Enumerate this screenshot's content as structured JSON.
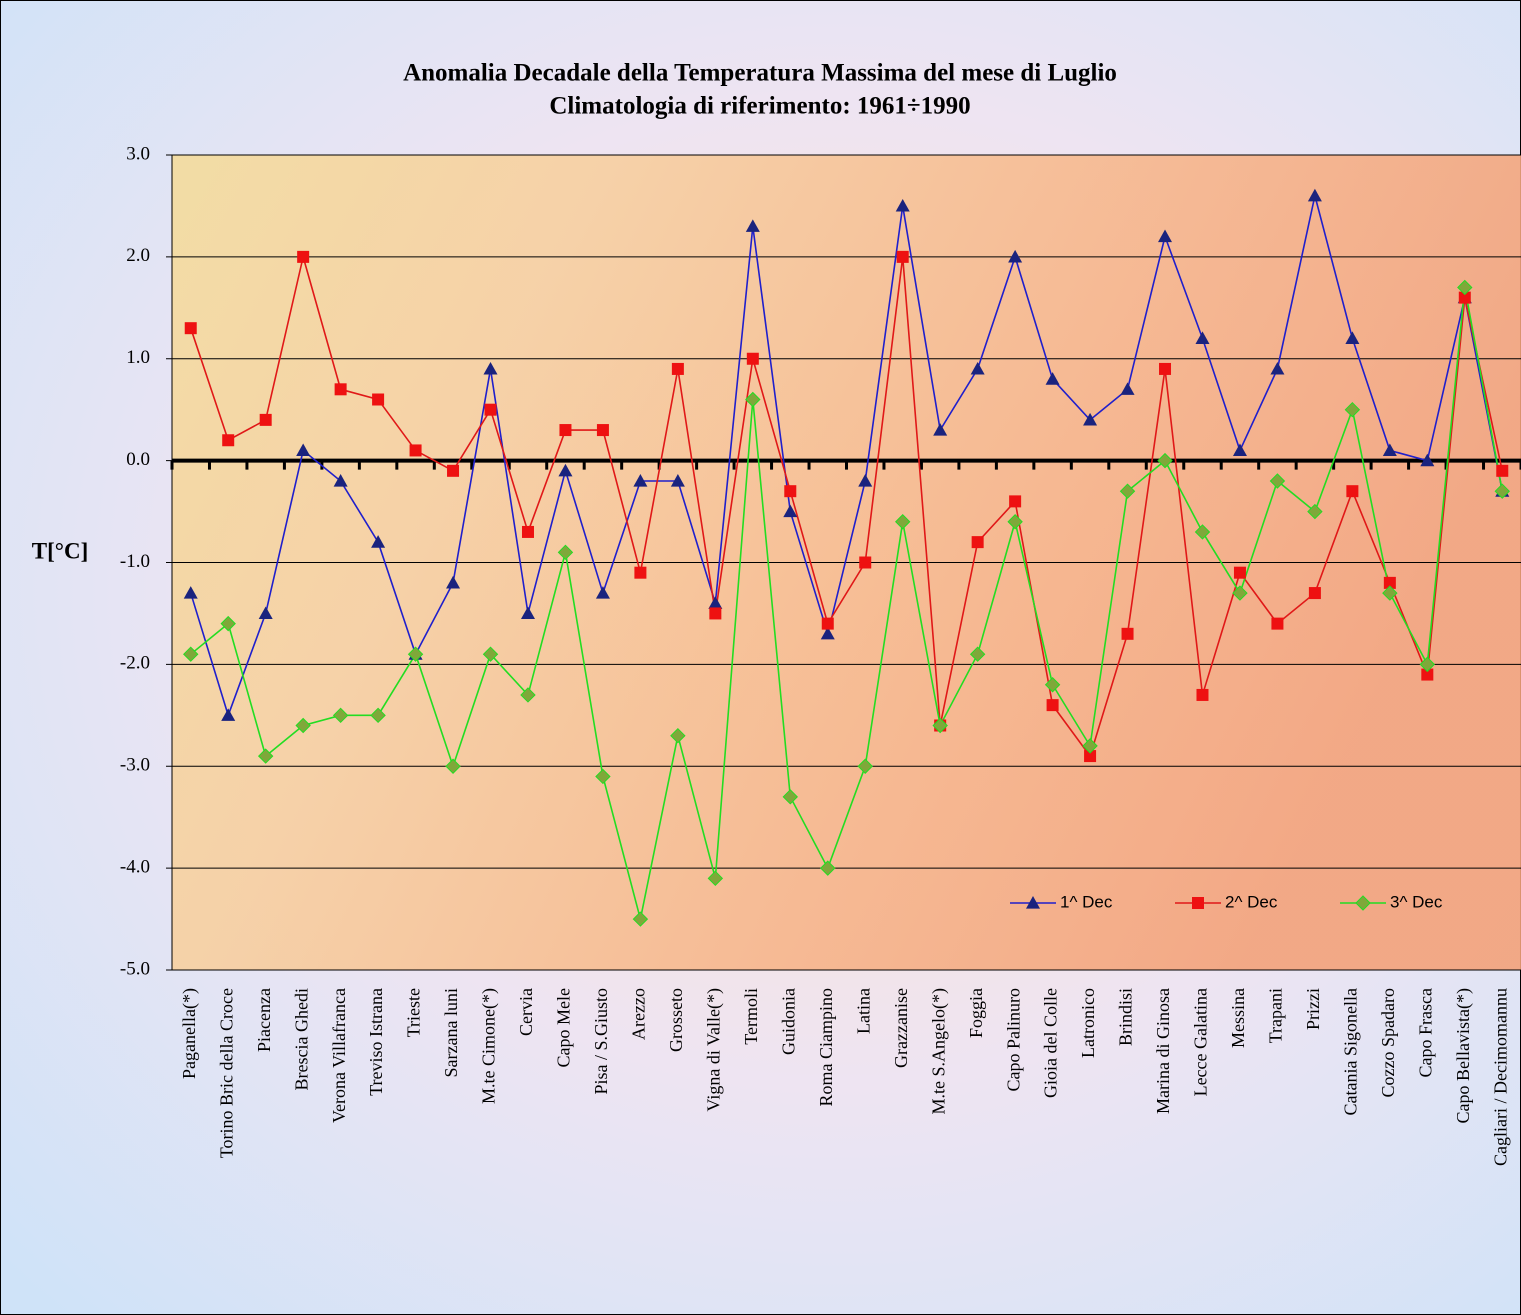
{
  "chart_data": {
    "type": "line",
    "title": "Anomalia Decadale della Temperatura Massima del mese di Luglio",
    "subtitle": "Climatologia di riferimento: 1961÷1990",
    "y_label": "T[°C]",
    "categories": [
      "Paganella(*)",
      "Torino Bric della Croce",
      "Piacenza",
      "Brescia Ghedi",
      "Verona Villafranca",
      "Treviso Istrana",
      "Trieste",
      "Sarzana luni",
      "M.te Cimone(*)",
      "Cervia",
      "Capo Mele",
      "Pisa / S.Giusto",
      "Arezzo",
      "Grosseto",
      "Vigna di Valle(*)",
      "Termoli",
      "Guidonia",
      "Roma Ciampino",
      "Latina",
      "Grazzanise",
      "M.te S.Angelo(*)",
      "Foggia",
      "Capo Palinuro",
      "Gioia del Colle",
      "Latronico",
      "Brindisi",
      "Marina di Ginosa",
      "Lecce Galatina",
      "Messina",
      "Trapani",
      "Prizzi",
      "Catania Sigonella",
      "Cozzo Spadaro",
      "Capo Frasca",
      "Capo Bellavista(*)",
      "Cagliari / Decimomannu"
    ],
    "series": [
      {
        "name": "1^ Dec",
        "color": "#1f1fcc",
        "marker_color": "#1a237e",
        "marker": "triangle",
        "values": [
          -1.3,
          -2.5,
          -1.5,
          0.1,
          -0.2,
          -0.8,
          -1.9,
          -1.2,
          0.9,
          -1.5,
          -0.1,
          -1.3,
          -0.2,
          -0.2,
          -1.4,
          2.3,
          -0.5,
          -1.7,
          -0.2,
          2.5,
          0.3,
          0.9,
          2.0,
          0.8,
          0.4,
          0.7,
          2.2,
          1.2,
          0.1,
          0.9,
          2.6,
          1.2,
          0.1,
          0.0,
          1.6,
          -0.3
        ]
      },
      {
        "name": "2^ Dec",
        "color": "#e01818",
        "marker_color": "#ee1111",
        "marker": "square",
        "values": [
          1.3,
          0.2,
          0.4,
          2.0,
          0.7,
          0.6,
          0.1,
          -0.1,
          0.5,
          -0.7,
          0.3,
          0.3,
          -1.1,
          0.9,
          -1.5,
          1.0,
          -0.3,
          -1.6,
          -1.0,
          2.0,
          -2.6,
          -0.8,
          -0.4,
          -2.4,
          -2.9,
          -1.7,
          0.9,
          -2.3,
          -1.1,
          -1.6,
          -1.3,
          -0.3,
          -1.2,
          -2.1,
          1.6,
          -0.1
        ]
      },
      {
        "name": "3^ Dec",
        "color": "#22dd22",
        "marker_color": "#7fa83a",
        "marker": "diamond",
        "values": [
          -1.9,
          -1.6,
          -2.9,
          -2.6,
          -2.5,
          -2.5,
          -1.9,
          -3.0,
          -1.9,
          -2.3,
          -0.9,
          -3.1,
          -4.5,
          -2.7,
          -4.1,
          0.6,
          -3.3,
          -4.0,
          -3.0,
          -0.6,
          -2.6,
          -1.9,
          -0.6,
          -2.2,
          -2.8,
          -0.3,
          0.0,
          -0.7,
          -1.3,
          -0.2,
          -0.5,
          0.5,
          -1.3,
          -2.0,
          1.7,
          -0.3
        ]
      }
    ],
    "ylim": [
      -5,
      3
    ],
    "yticks": [
      {
        "value": -5,
        "label": "-5.0"
      },
      {
        "value": -4,
        "label": "-4.0"
      },
      {
        "value": -3,
        "label": "-3.0"
      },
      {
        "value": -2,
        "label": "-2.0"
      },
      {
        "value": -1,
        "label": "-1.0"
      },
      {
        "value": 0,
        "label": "0.0"
      },
      {
        "value": 1,
        "label": "1.0"
      },
      {
        "value": 2,
        "label": "2.0"
      },
      {
        "value": 3,
        "label": "3.0"
      }
    ],
    "grid": true,
    "legend": "lower right"
  }
}
